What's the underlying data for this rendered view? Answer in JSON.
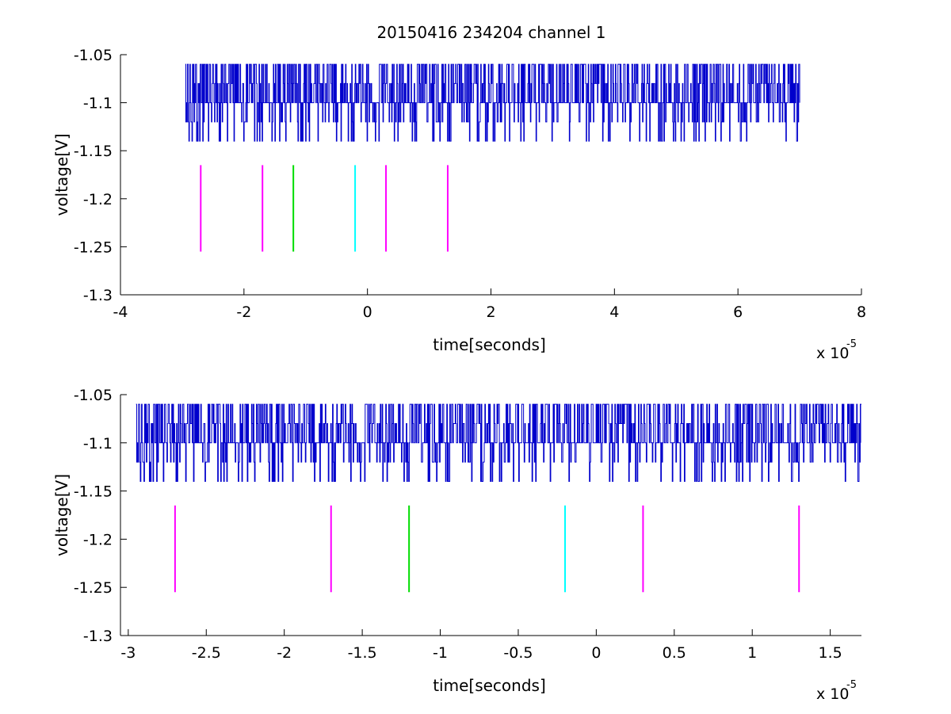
{
  "title": "20150416 234204 channel 1",
  "colors": {
    "signal": "#0000cc",
    "marker_magenta": "#ff00ff",
    "marker_green": "#00dd00",
    "marker_cyan": "#00ffff",
    "axes": "#000000"
  },
  "chart_data": [
    {
      "type": "line",
      "title": "20150416 234204 channel 1",
      "xlabel": "time[seconds]",
      "ylabel": "voltage[V]",
      "x_multiplier_label": "x 10",
      "x_multiplier_exponent": "-5",
      "xlim": [
        -4,
        8
      ],
      "ylim": [
        -1.3,
        -1.05
      ],
      "xticks": [
        -4,
        -2,
        0,
        2,
        4,
        6,
        8
      ],
      "xtick_labels": [
        "-4",
        "-2",
        "0",
        "2",
        "4",
        "6",
        "8"
      ],
      "yticks": [
        -1.3,
        -1.25,
        -1.2,
        -1.15,
        -1.1,
        -1.05
      ],
      "ytick_labels": [
        "-1.3",
        "-1.25",
        "-1.2",
        "-1.15",
        "-1.1",
        "-1.05"
      ],
      "grid": false,
      "signal": {
        "x_start": -2.95,
        "x_end": 7.0,
        "baseline": -1.1,
        "levels": [
          -1.14,
          -1.12,
          -1.1,
          -1.08,
          -1.06
        ]
      },
      "markers": [
        {
          "x": -2.7,
          "y_low": -1.255,
          "y_high": -1.165,
          "color": "magenta"
        },
        {
          "x": -1.7,
          "y_low": -1.255,
          "y_high": -1.165,
          "color": "magenta"
        },
        {
          "x": -1.2,
          "y_low": -1.255,
          "y_high": -1.165,
          "color": "green"
        },
        {
          "x": -0.2,
          "y_low": -1.255,
          "y_high": -1.165,
          "color": "cyan"
        },
        {
          "x": 0.3,
          "y_low": -1.255,
          "y_high": -1.165,
          "color": "magenta"
        },
        {
          "x": 1.3,
          "y_low": -1.255,
          "y_high": -1.165,
          "color": "magenta"
        }
      ]
    },
    {
      "type": "line",
      "xlabel": "time[seconds]",
      "ylabel": "voltage[V]",
      "x_multiplier_label": "x 10",
      "x_multiplier_exponent": "-5",
      "xlim": [
        -3.05,
        1.7
      ],
      "ylim": [
        -1.3,
        -1.05
      ],
      "xticks": [
        -3,
        -2.5,
        -2,
        -1.5,
        -1,
        -0.5,
        0,
        0.5,
        1,
        1.5
      ],
      "xtick_labels": [
        "-3",
        "-2.5",
        "-2",
        "-1.5",
        "-1",
        "-0.5",
        "0",
        "0.5",
        "1",
        "1.5"
      ],
      "yticks": [
        -1.3,
        -1.25,
        -1.2,
        -1.15,
        -1.1,
        -1.05
      ],
      "ytick_labels": [
        "-1.3",
        "-1.25",
        "-1.2",
        "-1.15",
        "-1.1",
        "-1.05"
      ],
      "grid": false,
      "signal": {
        "x_start": -2.95,
        "x_end": 1.7,
        "baseline": -1.1,
        "levels": [
          -1.14,
          -1.12,
          -1.1,
          -1.08,
          -1.06
        ]
      },
      "markers": [
        {
          "x": -2.7,
          "y_low": -1.255,
          "y_high": -1.165,
          "color": "magenta"
        },
        {
          "x": -1.7,
          "y_low": -1.255,
          "y_high": -1.165,
          "color": "magenta"
        },
        {
          "x": -1.2,
          "y_low": -1.255,
          "y_high": -1.165,
          "color": "green"
        },
        {
          "x": -0.2,
          "y_low": -1.255,
          "y_high": -1.165,
          "color": "cyan"
        },
        {
          "x": 0.3,
          "y_low": -1.255,
          "y_high": -1.165,
          "color": "magenta"
        },
        {
          "x": 1.3,
          "y_low": -1.255,
          "y_high": -1.165,
          "color": "magenta"
        }
      ]
    }
  ]
}
